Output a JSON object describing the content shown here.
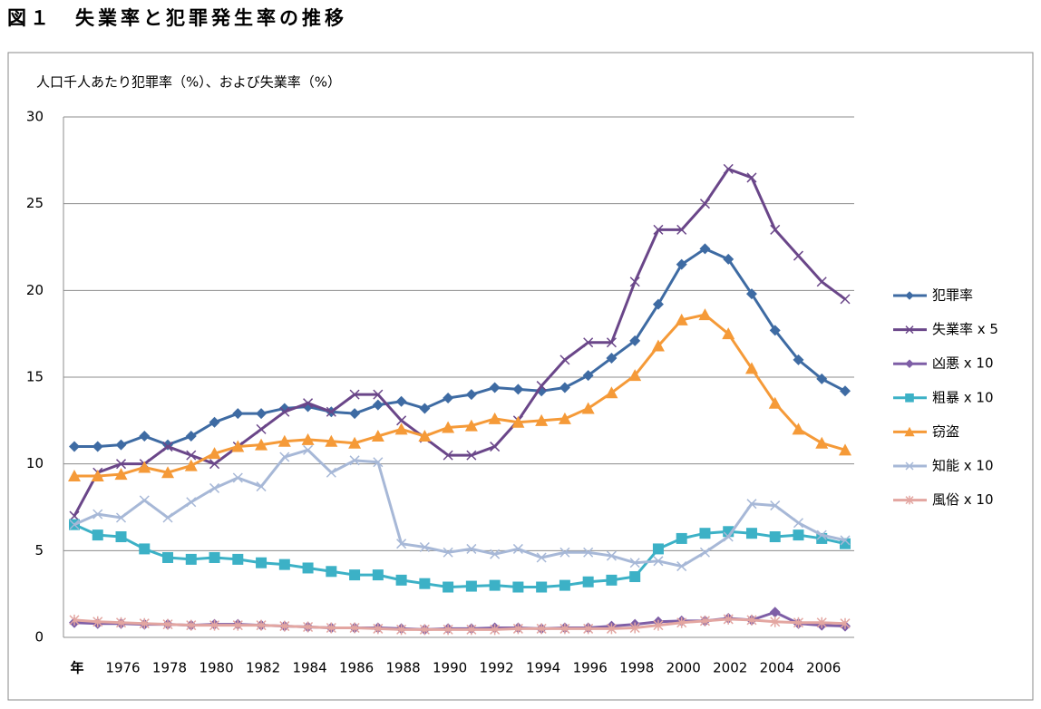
{
  "chart_data": {
    "type": "line",
    "title": "図１　失業率と犯罪発生率の推移",
    "ylabel": "人口千人あたり犯罪率（%）、および失業率（%）",
    "categories": [
      "年",
      null,
      "1976",
      null,
      "1978",
      null,
      "1980",
      null,
      "1982",
      null,
      "1984",
      null,
      "1986",
      null,
      "1988",
      null,
      "1990",
      null,
      "1992",
      null,
      "1994",
      null,
      "1996",
      null,
      "1998",
      null,
      "2000",
      null,
      "2002",
      null,
      "2004",
      null,
      "2006",
      null
    ],
    "ylim": [
      0,
      30
    ],
    "yticks": [
      0,
      5,
      10,
      15,
      20,
      25,
      30
    ],
    "grid": true,
    "legend": "right",
    "series": [
      {
        "name": "犯罪率",
        "color": "#3e6ba3",
        "marker": "diamond",
        "values": [
          11.0,
          11.0,
          11.1,
          11.6,
          11.1,
          11.6,
          12.4,
          12.9,
          12.9,
          13.2,
          13.3,
          13.0,
          12.9,
          13.4,
          13.6,
          13.2,
          13.8,
          14.0,
          14.4,
          14.3,
          14.2,
          14.4,
          15.1,
          16.1,
          17.1,
          19.2,
          21.5,
          22.4,
          21.8,
          19.8,
          17.7,
          16.0,
          14.9,
          14.2
        ]
      },
      {
        "name": "失業率 x 5",
        "color": "#6a4689",
        "marker": "x",
        "values": [
          7.0,
          9.5,
          10.0,
          10.0,
          11.0,
          10.5,
          10.0,
          11.0,
          12.0,
          13.0,
          13.5,
          13.0,
          14.0,
          14.0,
          12.5,
          11.5,
          10.5,
          10.5,
          11.0,
          12.5,
          14.5,
          16.0,
          17.0,
          17.0,
          20.5,
          23.5,
          23.5,
          25.0,
          27.0,
          26.5,
          23.5,
          22.0,
          20.5,
          19.5
        ]
      },
      {
        "name": "凶悪 x 10",
        "color": "#7e5ea6",
        "marker": "diamond",
        "values": [
          0.85,
          0.8,
          0.8,
          0.75,
          0.75,
          0.7,
          0.75,
          0.75,
          0.7,
          0.65,
          0.6,
          0.55,
          0.55,
          0.55,
          0.5,
          0.45,
          0.5,
          0.5,
          0.55,
          0.55,
          0.5,
          0.55,
          0.55,
          0.65,
          0.75,
          0.9,
          0.95,
          0.95,
          1.1,
          1.0,
          1.45,
          0.8,
          0.7,
          0.65
        ]
      },
      {
        "name": "粗暴 x 10",
        "color": "#3cb1c6",
        "marker": "square",
        "values": [
          6.5,
          5.9,
          5.8,
          5.1,
          4.6,
          4.5,
          4.6,
          4.5,
          4.3,
          4.2,
          4.0,
          3.8,
          3.6,
          3.6,
          3.3,
          3.1,
          2.9,
          2.95,
          3.0,
          2.9,
          2.9,
          3.0,
          3.2,
          3.3,
          3.5,
          5.1,
          5.7,
          6.0,
          6.1,
          6.0,
          5.8,
          5.9,
          5.7,
          5.4
        ]
      },
      {
        "name": "窃盗",
        "color": "#f59a38",
        "marker": "triangle",
        "values": [
          9.3,
          9.3,
          9.4,
          9.8,
          9.5,
          9.9,
          10.6,
          11.0,
          11.1,
          11.3,
          11.4,
          11.3,
          11.2,
          11.6,
          12.0,
          11.6,
          12.1,
          12.2,
          12.6,
          12.4,
          12.5,
          12.6,
          13.2,
          14.1,
          15.1,
          16.8,
          18.3,
          18.6,
          17.5,
          15.5,
          13.5,
          12.0,
          11.2,
          10.8
        ]
      },
      {
        "name": "知能 x 10",
        "color": "#a7b8d7",
        "marker": "x",
        "values": [
          6.5,
          7.1,
          6.9,
          7.9,
          6.9,
          7.8,
          8.6,
          9.2,
          8.7,
          10.4,
          10.8,
          9.5,
          10.2,
          10.1,
          5.4,
          5.2,
          4.9,
          5.1,
          4.8,
          5.1,
          4.6,
          4.9,
          4.9,
          4.7,
          4.3,
          4.4,
          4.1,
          4.9,
          5.8,
          7.7,
          7.6,
          6.6,
          5.9,
          5.6
        ]
      },
      {
        "name": "風俗 x 10",
        "color": "#e3a6a1",
        "marker": "star",
        "values": [
          1.0,
          0.9,
          0.85,
          0.8,
          0.75,
          0.7,
          0.7,
          0.7,
          0.7,
          0.65,
          0.6,
          0.55,
          0.55,
          0.5,
          0.45,
          0.45,
          0.45,
          0.45,
          0.45,
          0.5,
          0.5,
          0.5,
          0.5,
          0.5,
          0.55,
          0.7,
          0.85,
          0.95,
          1.05,
          1.0,
          0.9,
          0.85,
          0.85,
          0.8
        ]
      }
    ]
  }
}
